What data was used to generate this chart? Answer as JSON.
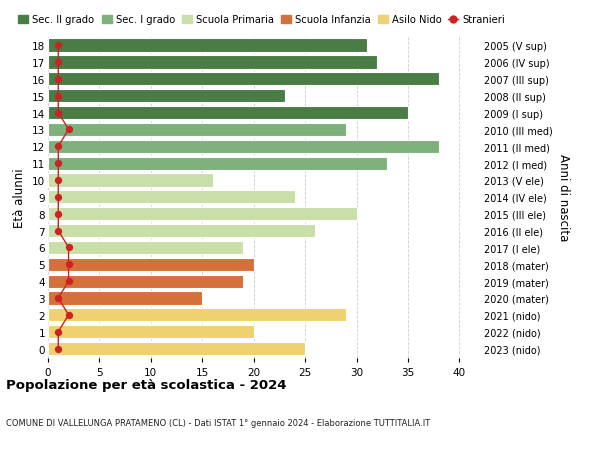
{
  "ages": [
    18,
    17,
    16,
    15,
    14,
    13,
    12,
    11,
    10,
    9,
    8,
    7,
    6,
    5,
    4,
    3,
    2,
    1,
    0
  ],
  "right_labels": [
    "2005 (V sup)",
    "2006 (IV sup)",
    "2007 (III sup)",
    "2008 (II sup)",
    "2009 (I sup)",
    "2010 (III med)",
    "2011 (II med)",
    "2012 (I med)",
    "2013 (V ele)",
    "2014 (IV ele)",
    "2015 (III ele)",
    "2016 (II ele)",
    "2017 (I ele)",
    "2018 (mater)",
    "2019 (mater)",
    "2020 (mater)",
    "2021 (nido)",
    "2022 (nido)",
    "2023 (nido)"
  ],
  "bar_values": [
    31,
    32,
    38,
    23,
    35,
    29,
    38,
    33,
    16,
    24,
    30,
    26,
    19,
    20,
    19,
    15,
    29,
    20,
    25
  ],
  "bar_colors": [
    "#4a7c45",
    "#4a7c45",
    "#4a7c45",
    "#4a7c45",
    "#4a7c45",
    "#7db07a",
    "#7db07a",
    "#7db07a",
    "#c8dfa8",
    "#c8dfa8",
    "#c8dfa8",
    "#c8dfa8",
    "#c8dfa8",
    "#d4713a",
    "#d4713a",
    "#d4713a",
    "#f0d070",
    "#f0d070",
    "#f0d070"
  ],
  "stranieri_values": [
    1,
    1,
    1,
    1,
    1,
    2,
    1,
    1,
    1,
    1,
    1,
    1,
    2,
    2,
    2,
    1,
    2,
    1,
    1
  ],
  "stranieri_color": "#cc2222",
  "legend_labels": [
    "Sec. II grado",
    "Sec. I grado",
    "Scuola Primaria",
    "Scuola Infanzia",
    "Asilo Nido",
    "Stranieri"
  ],
  "legend_colors": [
    "#4a7c45",
    "#7db07a",
    "#c8dfa8",
    "#d4713a",
    "#f0d070",
    "#cc2222"
  ],
  "ylabel_left": "Età alunni",
  "ylabel_right": "Anni di nascita",
  "title": "Popolazione per età scolastica - 2024",
  "subtitle": "COMUNE DI VALLELUNGA PRATAMENO (CL) - Dati ISTAT 1° gennaio 2024 - Elaborazione TUTTITALIA.IT",
  "xlim": [
    0,
    42
  ],
  "xticks": [
    0,
    5,
    10,
    15,
    20,
    25,
    30,
    35,
    40
  ],
  "bg_color": "#ffffff",
  "grid_color": "#cccccc"
}
